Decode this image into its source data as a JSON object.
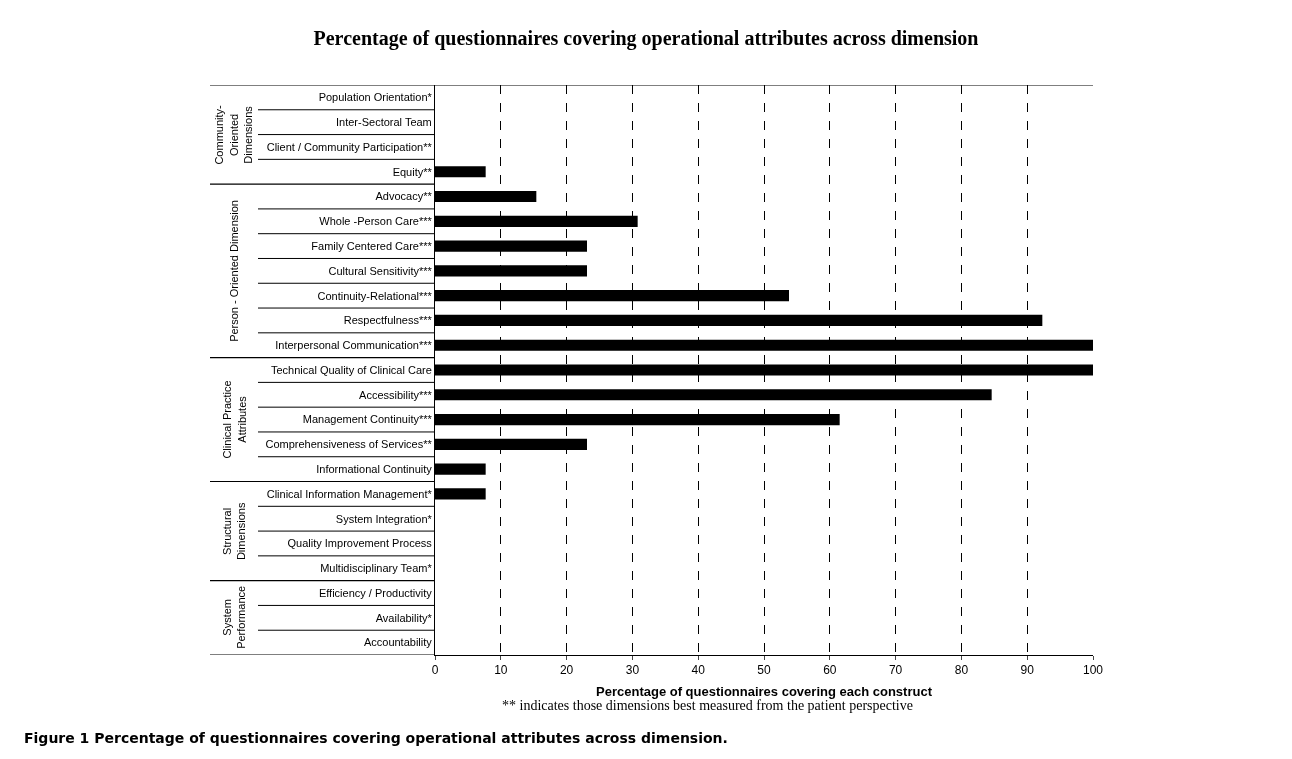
{
  "chart_data": {
    "type": "bar",
    "orientation": "horizontal",
    "title": "Percentage of questionnaires covering operational attributes across dimension",
    "xlabel": "Percentage of questionnaires covering each construct",
    "categories": [
      "Population Orientation*",
      "Inter-Sectoral Team",
      "Client / Community Participation**",
      "Equity**",
      "Advocacy**",
      "Whole -Person Care***",
      "Family Centered Care***",
      "Cultural Sensitivity***",
      "Continuity-Relational***",
      "Respectfulness***",
      "Interpersonal Communication***",
      "Technical Quality of Clinical Care",
      "Accessibility***",
      "Management Continuity***",
      "Comprehensiveness of Services**",
      "Informational Continuity",
      "Clinical Information Management*",
      "System Integration*",
      "Quality Improvement Process",
      "Multidisciplinary Team*",
      "Efficiency / Productivity",
      "Availability*",
      "Accountability"
    ],
    "values": [
      0,
      0,
      0,
      7.7,
      15.4,
      30.8,
      23.1,
      23.1,
      53.8,
      92.3,
      100,
      100,
      84.6,
      61.5,
      23.1,
      7.7,
      7.7,
      0,
      0,
      0,
      0,
      0,
      0
    ],
    "color": "#000000",
    "xlim": [
      0,
      100
    ],
    "xticks": [
      0,
      10,
      20,
      30,
      40,
      50,
      60,
      70,
      80,
      90,
      100
    ],
    "grid": "x",
    "legend": false,
    "annotations": [
      "Community-\nOriented\nDimensions",
      "Person - Oriented Dimension",
      "Clinical Practice\nAttributes",
      "Structural\nDimensions",
      "System\nPerformance",
      "** indicates those dimensions best measured from the patient perspective",
      "Figure 1 Percentage of questionnaires covering operational attributes across dimension."
    ]
  }
}
